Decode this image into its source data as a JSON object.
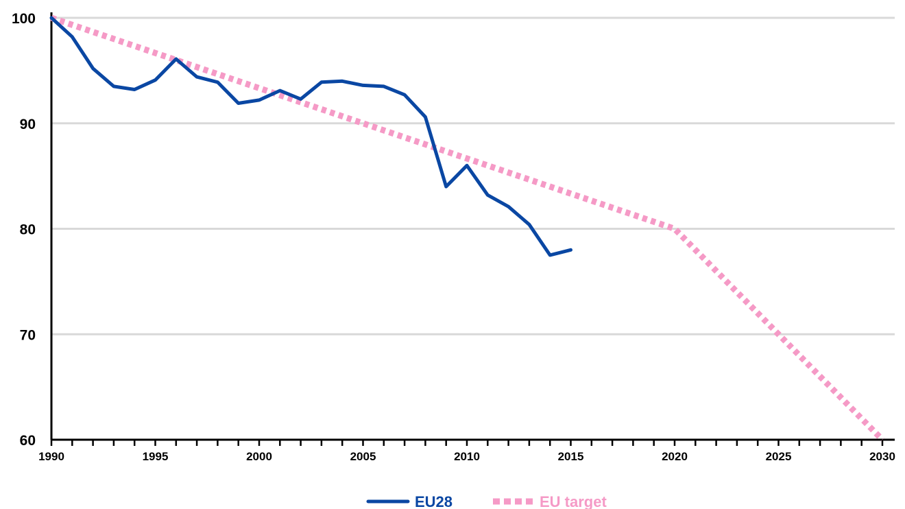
{
  "chart_data": {
    "type": "line",
    "xlim": [
      1990,
      2030
    ],
    "ylim": [
      60,
      100
    ],
    "y_ticks": [
      60,
      70,
      80,
      90,
      100
    ],
    "x_tick_labels": [
      1990,
      1995,
      2000,
      2005,
      2010,
      2015,
      2020,
      2025,
      2030
    ],
    "x_minor_step": 1,
    "grid": "horizontal",
    "legend_position": "bottom-center",
    "series": [
      {
        "name": "EU28",
        "color": "#0a47a3",
        "style": "solid",
        "x": [
          1990,
          1991,
          1992,
          1993,
          1994,
          1995,
          1996,
          1997,
          1998,
          1999,
          2000,
          2001,
          2002,
          2003,
          2004,
          2005,
          2006,
          2007,
          2008,
          2009,
          2010,
          2011,
          2012,
          2013,
          2014,
          2015
        ],
        "values": [
          100,
          98.2,
          95.2,
          93.5,
          93.2,
          94.1,
          96.1,
          94.4,
          93.9,
          91.9,
          92.2,
          93.1,
          92.3,
          93.9,
          94.0,
          93.6,
          93.5,
          92.7,
          90.6,
          84.0,
          86.0,
          83.2,
          82.1,
          80.4,
          77.5,
          78.0
        ]
      },
      {
        "name": "EU target",
        "color": "#f59ac6",
        "style": "dotted",
        "x": [
          1990,
          2020,
          2030
        ],
        "values": [
          100,
          80,
          60
        ]
      }
    ]
  }
}
